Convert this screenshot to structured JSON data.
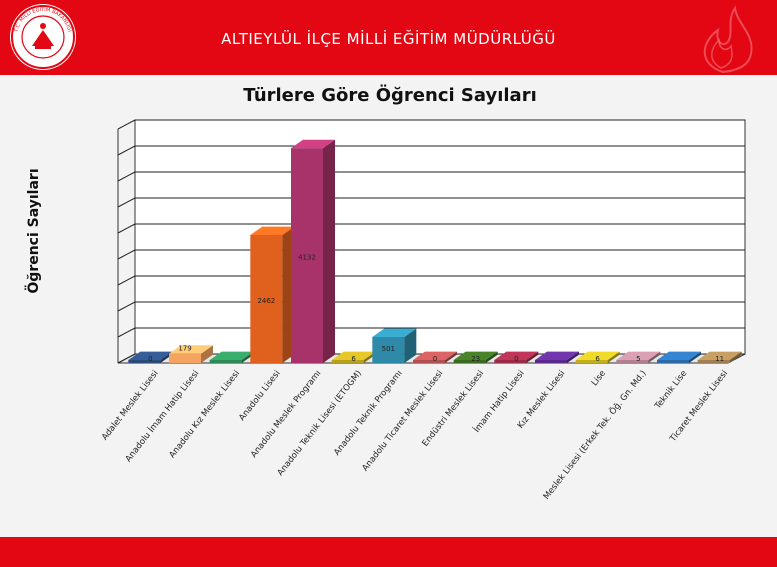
{
  "header": {
    "title": "ALTIEYLÜL İLÇE MİLLİ EĞİTİM MÜDÜRLÜĞÜ",
    "logo_text": "T.C. MİLLÎ EĞİTİM BAKANLIĞI"
  },
  "colors": {
    "brand_red": "#e30613",
    "grid": "#222222"
  },
  "chart_data": {
    "type": "bar",
    "title": "Türlere Göre Öğrenci Sayıları",
    "xlabel": "",
    "ylabel": "Öğrenci Sayıları",
    "ylim": [
      0,
      4500
    ],
    "grid": true,
    "categories": [
      "Adalet Meslek Lisesi",
      "Anadolu İmam Hatip Lisesi",
      "Anadolu Kız Meslek Lisesi",
      "Anadolu Lisesi",
      "Anadolu Meslek Programı",
      "Anadolu Teknik Lisesi (ETOGM)",
      "Anadolu Teknik Programı",
      "Anadolu Ticaret Meslek Lisesi",
      "Endüstri Meslek Lisesi",
      "İmam Hatip Lisesi",
      "Kız Meslek Lisesi",
      "Lise",
      "Meslek Lisesi (Erkek Tek. Öğ. Gn. Md.)",
      "Teknik Lise",
      "Ticaret Meslek Lisesi"
    ],
    "values": [
      0,
      179,
      0,
      2462,
      4132,
      6,
      501,
      0,
      23,
      0,
      0,
      6,
      5,
      0,
      11
    ],
    "data_labels": [
      "0",
      "179",
      "",
      "2462",
      "4132",
      "6",
      "501",
      "0",
      "23",
      "0",
      "",
      "6",
      "5",
      "",
      "11"
    ],
    "colors": [
      "#2a4a7a",
      "#f4a460",
      "#2e8b57",
      "#e0601e",
      "#a8336a",
      "#b8a020",
      "#2e8aa8",
      "#b05050",
      "#3a6a20",
      "#9a2a48",
      "#5a2a8a",
      "#c0b020",
      "#b08090",
      "#2a6aa8",
      "#a08050"
    ]
  }
}
